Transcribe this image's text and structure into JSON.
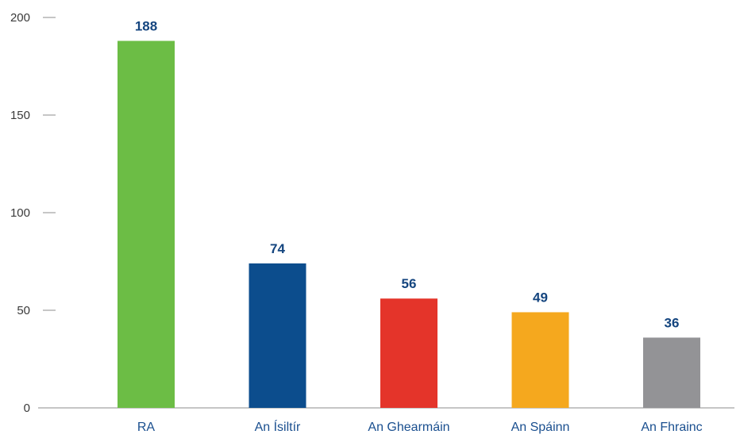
{
  "chart_data": {
    "type": "bar",
    "title": "",
    "xlabel": "",
    "ylabel": "",
    "categories": [
      "RA",
      "An Ísiltír",
      "An Ghearmáin",
      "An Spáinn",
      "An Fhrainc"
    ],
    "values": [
      188,
      74,
      56,
      49,
      36
    ],
    "data_labels": [
      "188",
      "74",
      "56",
      "49",
      "36"
    ],
    "bar_colors": [
      "#6cbd45",
      "#0c4d8d",
      "#e4342a",
      "#f5a81e",
      "#939396"
    ],
    "label_color": "#14457f",
    "category_label_color": "#1a4f8f",
    "ylim": [
      0,
      200
    ],
    "yticks": [
      0,
      50,
      100,
      150,
      200
    ],
    "ytick_labels": [
      "0",
      "50",
      "100",
      "150",
      "200"
    ],
    "grid": false,
    "legend": "none"
  }
}
